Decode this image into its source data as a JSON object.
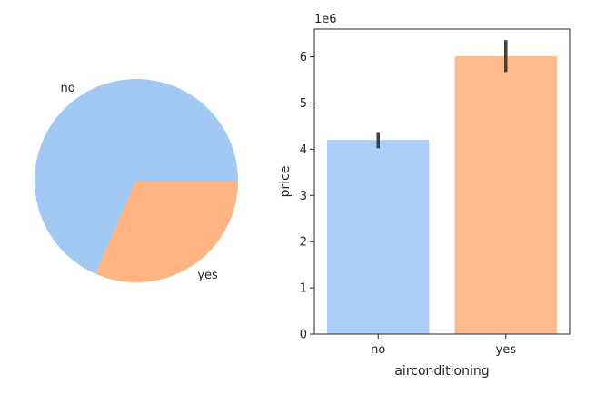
{
  "chart_data": [
    {
      "type": "pie",
      "labels": [
        "no",
        "yes"
      ],
      "values": [
        68.4,
        31.6
      ],
      "colors": [
        "#a1c9f4",
        "#ffb482"
      ],
      "start_angle_deg": 0
    },
    {
      "type": "bar",
      "categories": [
        "no",
        "yes"
      ],
      "values": [
        4200000,
        6010000
      ],
      "error_bars": [
        [
          4020000,
          4370000
        ],
        [
          5670000,
          6360000
        ]
      ],
      "colors": [
        "#a1c9f4",
        "#ffb482"
      ],
      "xlabel": "airconditioning",
      "ylabel": "price",
      "offset_label": "1e6",
      "ylim": [
        0,
        6600000
      ],
      "yticks": [
        0,
        1000000,
        2000000,
        3000000,
        4000000,
        5000000,
        6000000
      ],
      "ytick_labels": [
        "0",
        "1",
        "2",
        "3",
        "4",
        "5",
        "6"
      ],
      "grid": false
    }
  ]
}
